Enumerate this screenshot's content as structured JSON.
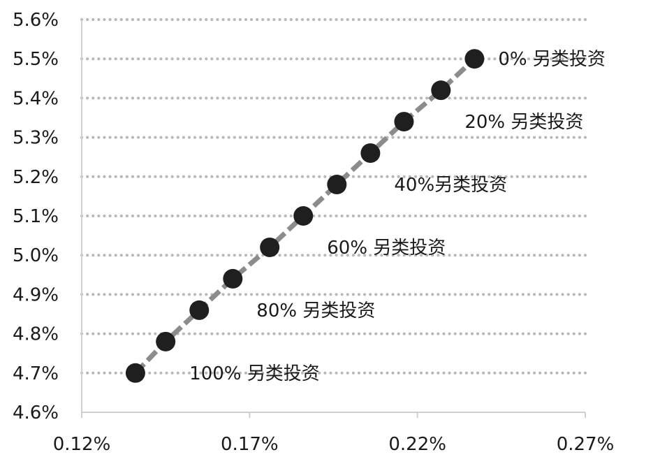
{
  "chart_data": {
    "type": "line",
    "title": "",
    "xlabel": "",
    "ylabel": "",
    "xlim": [
      0.12,
      0.27
    ],
    "ylim": [
      4.6,
      5.6
    ],
    "x_ticks": [
      0.12,
      0.17,
      0.22,
      0.27
    ],
    "x_tick_labels": [
      "0.12%",
      "0.17%",
      "0.22%",
      "0.27%"
    ],
    "y_ticks": [
      4.6,
      4.7,
      4.8,
      4.9,
      5.0,
      5.1,
      5.2,
      5.3,
      5.4,
      5.5,
      5.6
    ],
    "y_tick_labels": [
      "4.6%",
      "4.7%",
      "4.8%",
      "4.9%",
      "5.0%",
      "5.1%",
      "5.2%",
      "5.3%",
      "5.4%",
      "5.5%",
      "5.6%"
    ],
    "grid": "horizontal dotted",
    "series": [
      {
        "x": [
          0.136,
          0.145,
          0.155,
          0.165,
          0.176,
          0.186,
          0.196,
          0.206,
          0.216,
          0.227,
          0.237
        ],
        "y": [
          4.7,
          4.78,
          4.86,
          4.94,
          5.02,
          5.1,
          5.18,
          5.26,
          5.34,
          5.42,
          5.5
        ]
      }
    ],
    "annotations": [
      {
        "text": "0% 另类投资",
        "x": 0.237,
        "y": 5.5
      },
      {
        "text": "20% 另类投资",
        "x": 0.227,
        "y": 5.34
      },
      {
        "text": "40%另类投资",
        "x": 0.206,
        "y": 5.18
      },
      {
        "text": "60% 另类投资",
        "x": 0.186,
        "y": 5.02
      },
      {
        "text": "80% 另类投资",
        "x": 0.165,
        "y": 4.86
      },
      {
        "text": "100% 另类投资",
        "x": 0.145,
        "y": 4.7
      }
    ],
    "colors": {
      "marker": "#1f1f1f",
      "line": "#8c8c8c",
      "grid": "#b8b8b8",
      "axis": "#cfcfcf"
    }
  }
}
